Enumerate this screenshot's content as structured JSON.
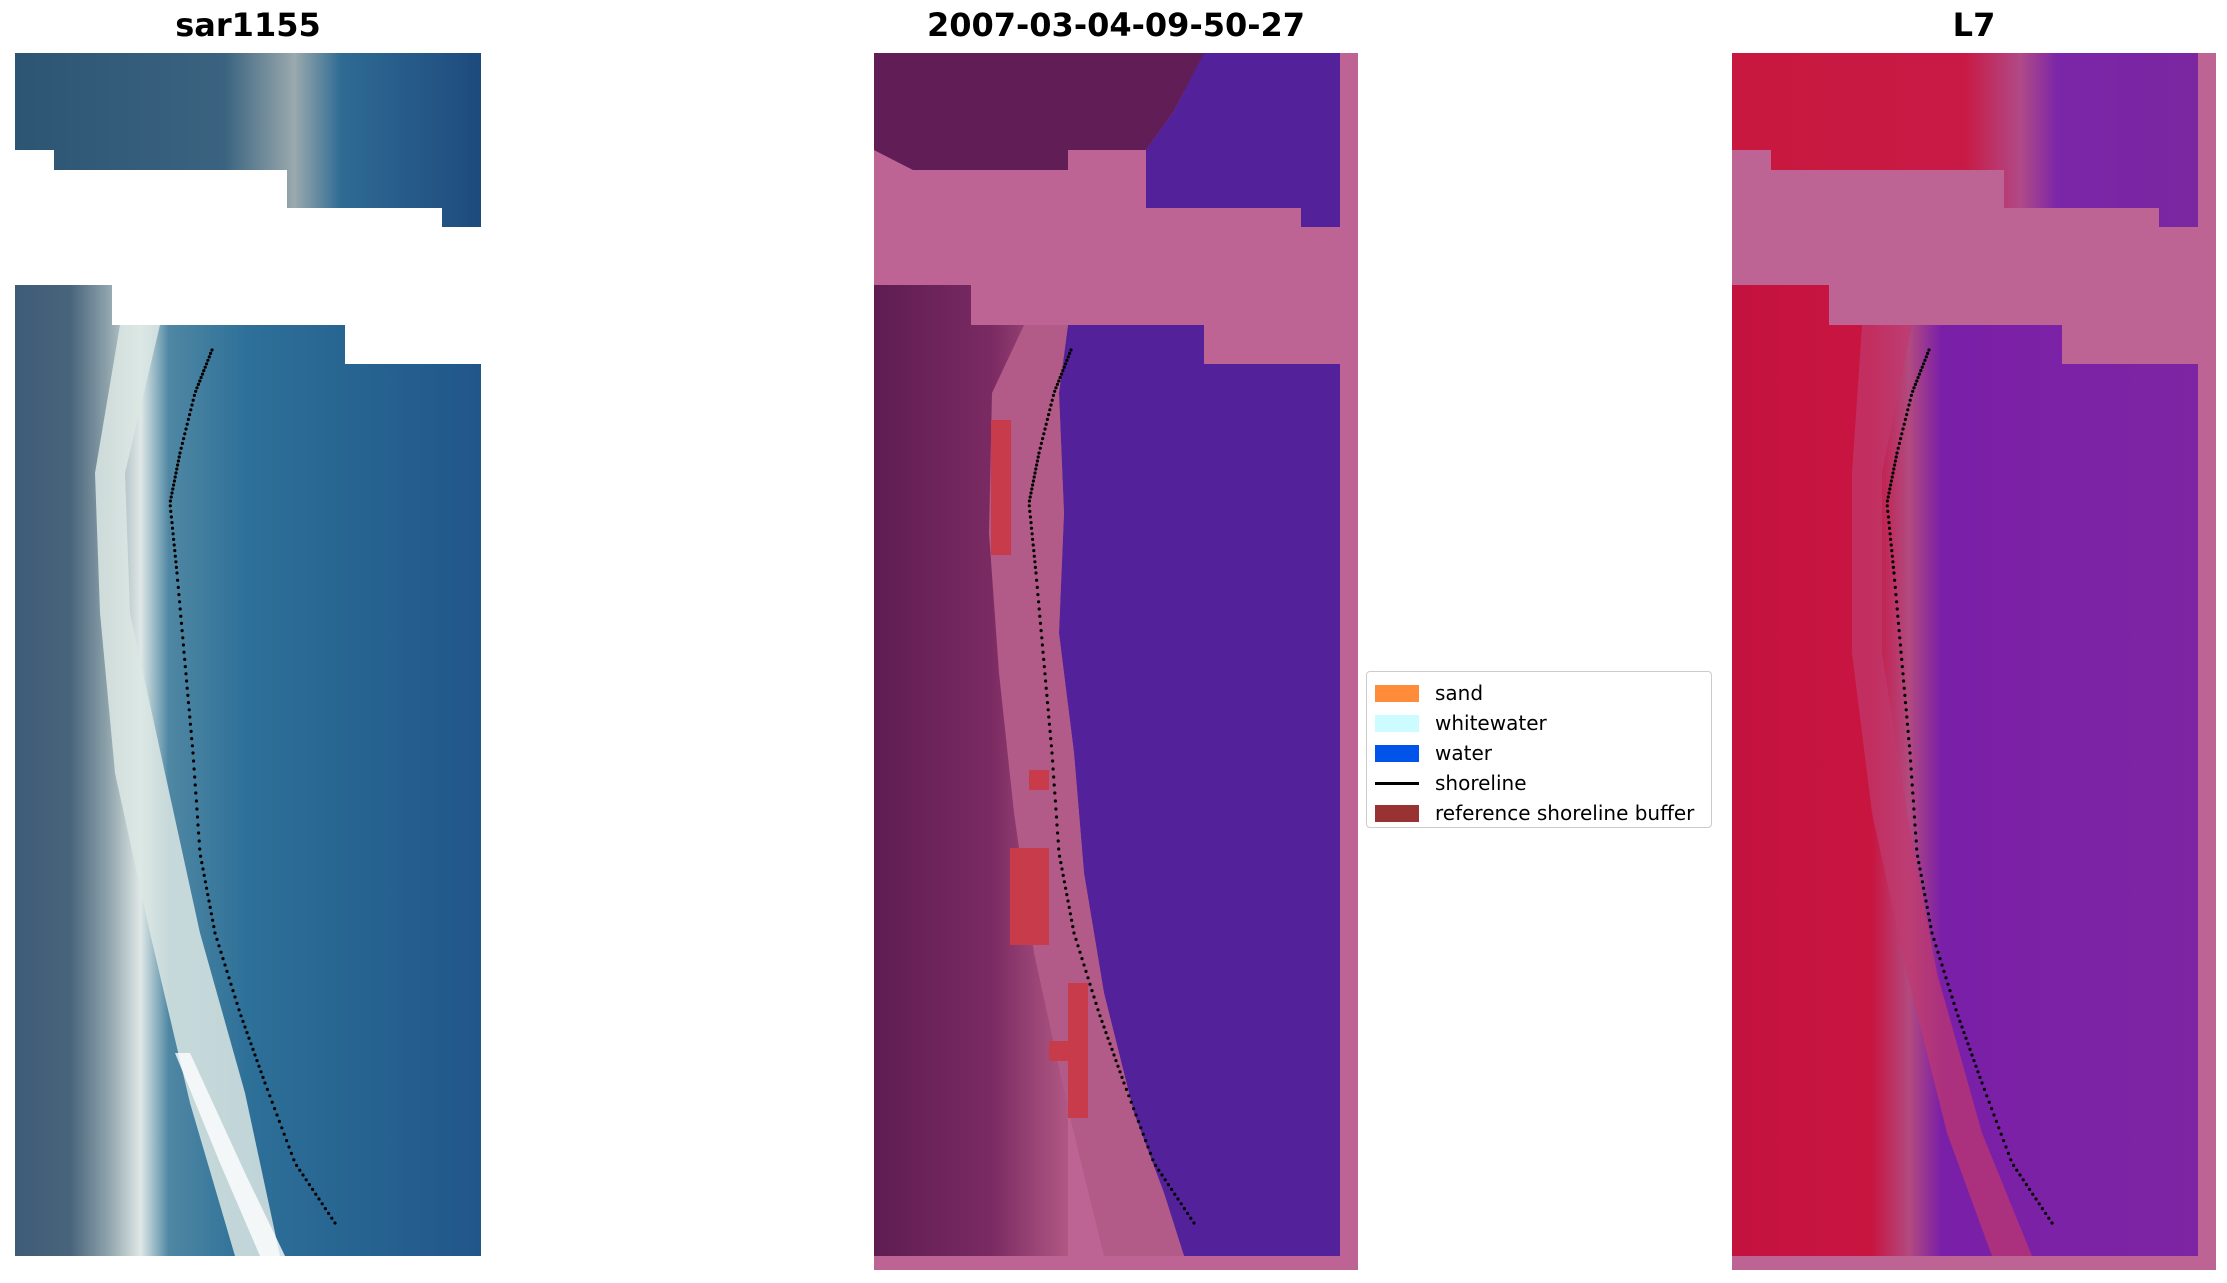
{
  "figure": {
    "panels": [
      {
        "title": "sar1155",
        "kind": "rgb"
      },
      {
        "title": "2007-03-04-09-50-27",
        "kind": "classified"
      },
      {
        "title": "L7",
        "kind": "false-color"
      }
    ]
  },
  "legend": {
    "items": [
      {
        "label": "sand",
        "color": "#ff8c3a",
        "icon": "patch"
      },
      {
        "label": "whitewater",
        "color": "#ccfcff",
        "icon": "patch"
      },
      {
        "label": "water",
        "color": "#0054ea",
        "icon": "patch"
      },
      {
        "label": "shoreline",
        "color": "#000000",
        "icon": "line"
      },
      {
        "label": "reference shoreline buffer",
        "color": "#993333",
        "icon": "patch"
      }
    ]
  },
  "colors": {
    "nodata_magenta": "#bd6494",
    "water_purple": "#53219a",
    "land_red": "#c4123f",
    "buffer_red": "#c73b4b"
  }
}
